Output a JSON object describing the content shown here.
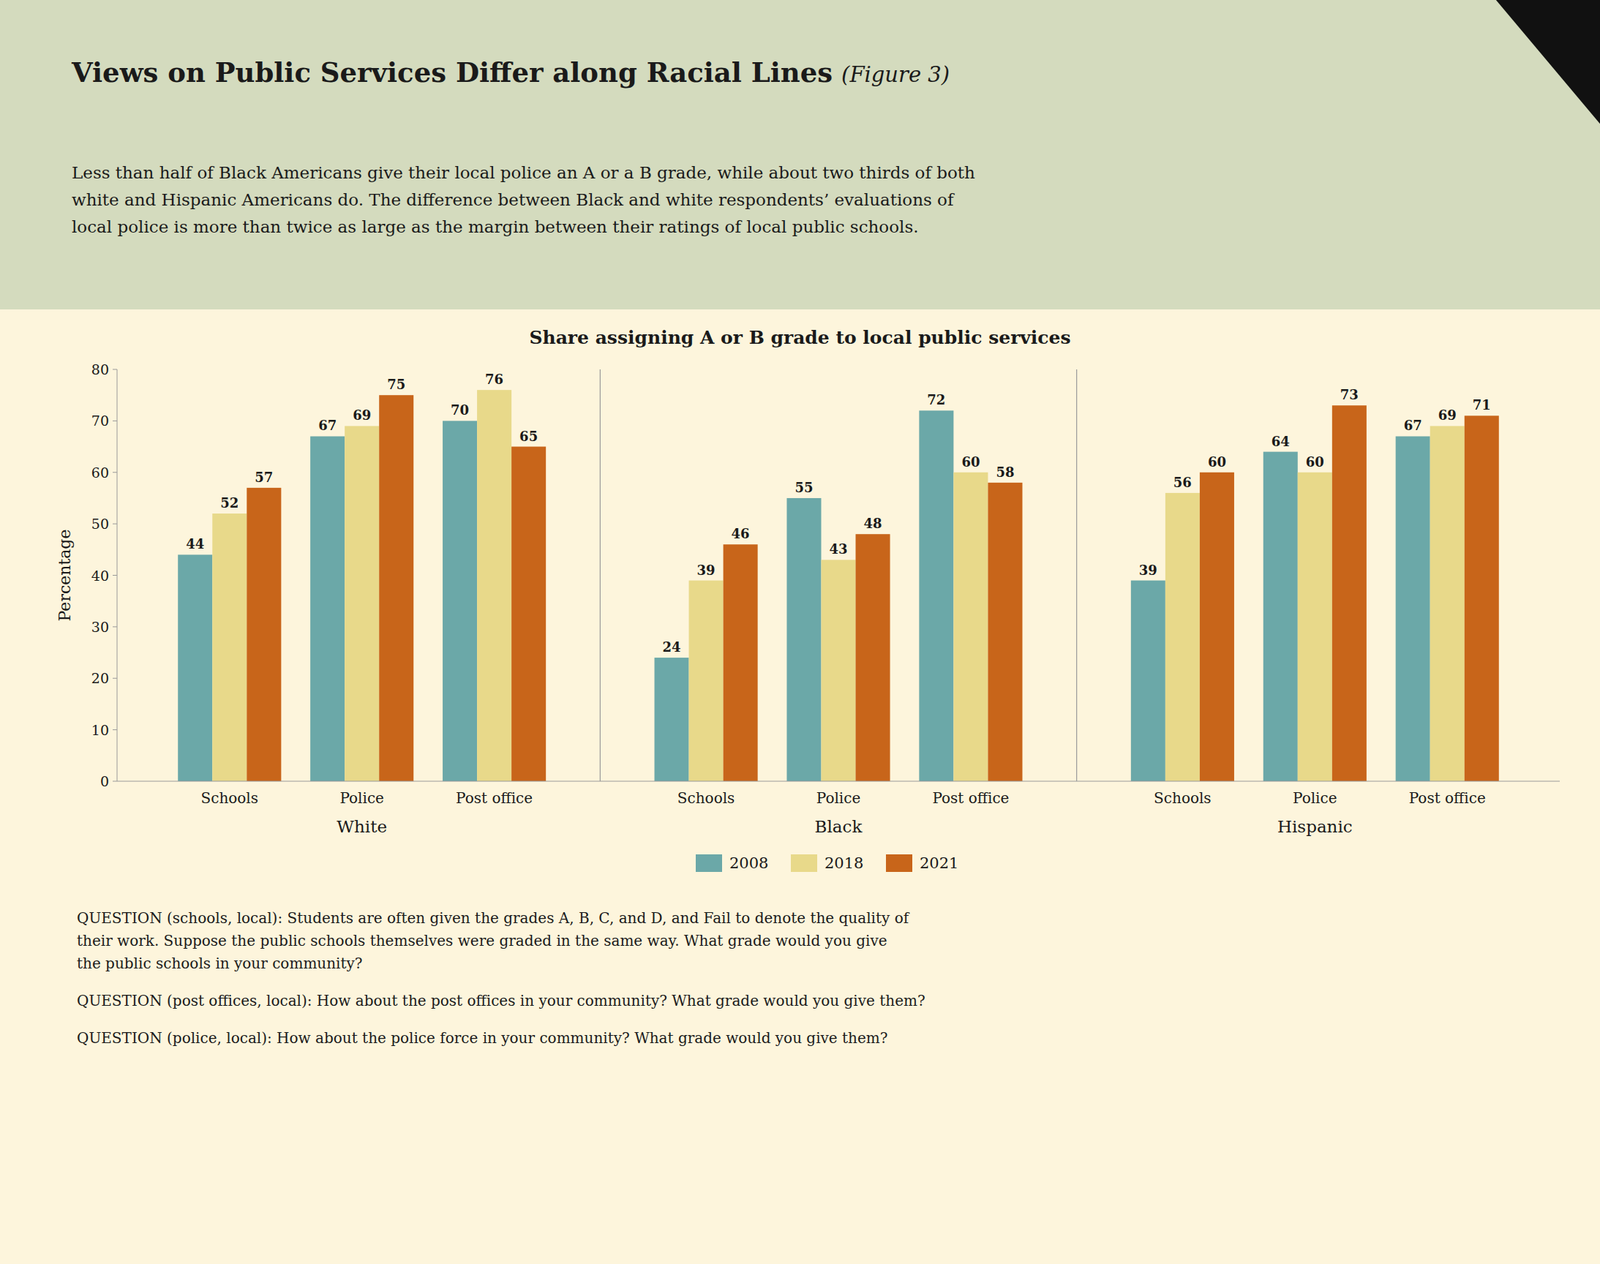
{
  "page": {
    "headline": "Views on Public Services Differ along Racial Lines",
    "headline_note": "(Figure 3)",
    "subtitle": "Less than half of Black Americans give their local police an A or a B grade, while about two thirds of both\nwhite and Hispanic Americans do. The difference between Black and white respondents’ evaluations of\nlocal police is more than twice as large as the margin between their ratings of local public schools.",
    "notes": [
      "QUESTION (schools, local): Students are often given the grades A, B, C, and D, and Fail to denote the quality of\ntheir work. Suppose the public schools themselves were graded in the same way. What grade would you give\nthe public schools in your community?",
      "QUESTION (post offices, local): How about the post offices in your community? What grade would you give them?",
      "QUESTION (police, local): How about the police force in your community? What grade would you give them?"
    ]
  },
  "chart_data": {
    "type": "bar",
    "title": "Share assigning A or B grade to local public services",
    "categories": [
      "Schools",
      "Police",
      "Post office",
      "Schools",
      "Police",
      "Post office",
      "Schools",
      "Police",
      "Post office"
    ],
    "category_groups": [
      "White",
      "Black",
      "Hispanic"
    ],
    "series": [
      {
        "name": "2008",
        "color": "#6ba8a8",
        "values": [
          44,
          67,
          70,
          24,
          55,
          72,
          39,
          64,
          67
        ]
      },
      {
        "name": "2018",
        "color": "#e8d98a",
        "values": [
          52,
          69,
          76,
          39,
          43,
          60,
          56,
          60,
          69
        ]
      },
      {
        "name": "2021",
        "color": "#c8651a",
        "values": [
          57,
          75,
          65,
          46,
          48,
          58,
          60,
          73,
          71
        ]
      }
    ],
    "ylabel": "Percentage",
    "ylim": [
      0,
      80
    ],
    "yticks": [
      0,
      10,
      20,
      30,
      40,
      50,
      60,
      70,
      80
    ],
    "grid": false,
    "legend": "bottom",
    "data_labels": true
  }
}
